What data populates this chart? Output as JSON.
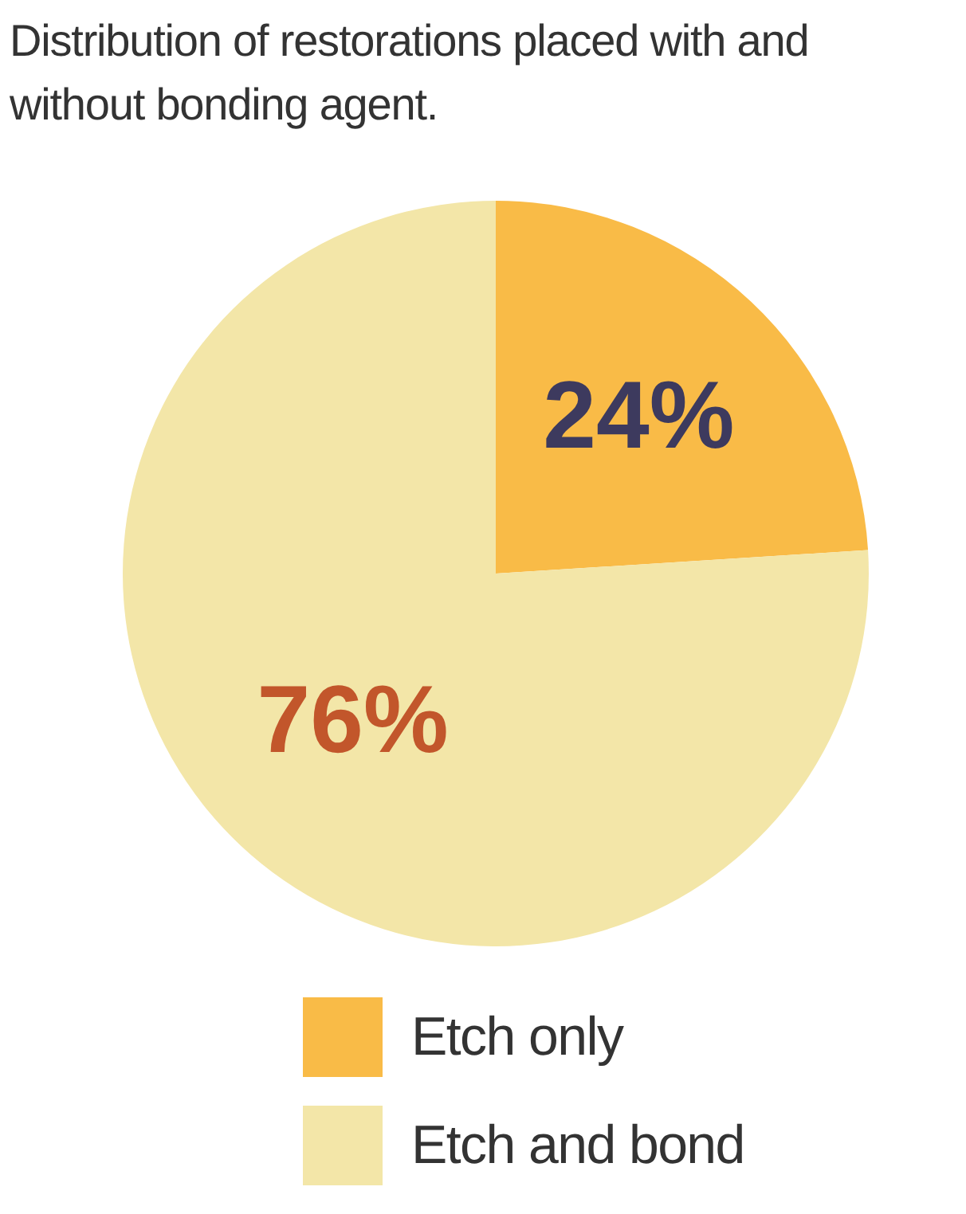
{
  "chart_data": {
    "type": "pie",
    "title": "Distribution of restorations placed with and without bonding agent.",
    "categories": [
      "Etch only",
      "Etch and bond"
    ],
    "values": [
      24,
      76
    ],
    "value_labels": [
      "24%",
      "76%"
    ],
    "colors": [
      "#f9bb47",
      "#f3e6a8"
    ],
    "legend": "bottom"
  }
}
